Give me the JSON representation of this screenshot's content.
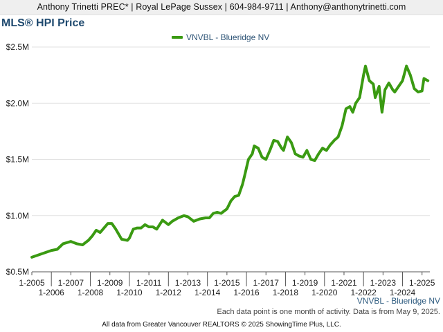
{
  "header": {
    "contact": "Anthony Trinetti PREC* | Royal LePage Sussex | 604-984-9711 | Anthony@anthonytrinetti.com"
  },
  "colors": {
    "series": "#3a9a12",
    "title": "#1f4a6f",
    "grid": "#e2e2e2"
  },
  "chart_data": {
    "type": "line",
    "title": "MLS® HPI Price",
    "legend_position": "top-center",
    "grid": true,
    "ylim": [
      0.5,
      2.5
    ],
    "y_unit": "million CAD",
    "y_tick_values": [
      0.5,
      1.0,
      1.5,
      2.0,
      2.5
    ],
    "y_tick_labels": [
      "$0.5M",
      "$1.0M",
      "$1.5M",
      "$2.0M",
      "$2.5M"
    ],
    "x_tick_values": [
      2005,
      2006,
      2007,
      2008,
      2009,
      2010,
      2011,
      2012,
      2013,
      2014,
      2015,
      2016,
      2017,
      2018,
      2019,
      2020,
      2021,
      2022,
      2023,
      2024,
      2025
    ],
    "x_tick_labels": [
      "1-2005",
      "1-2006",
      "1-2007",
      "1-2008",
      "1-2009",
      "1-2010",
      "1-2011",
      "1-2012",
      "1-2013",
      "1-2014",
      "1-2015",
      "1-2016",
      "1-2017",
      "1-2018",
      "1-2019",
      "1-2020",
      "1-2021",
      "1-2022",
      "1-2023",
      "1-2024",
      "1-2025"
    ],
    "xlim": [
      2005,
      2025.4
    ],
    "series": [
      {
        "name": "VNVBL - Blueridge NV",
        "color": "#3a9a12",
        "x": [
          2005.0,
          2005.5,
          2006.0,
          2006.3,
          2006.6,
          2007.0,
          2007.3,
          2007.6,
          2007.9,
          2008.1,
          2008.3,
          2008.5,
          2008.7,
          2008.9,
          2009.1,
          2009.3,
          2009.6,
          2009.9,
          2010.0,
          2010.2,
          2010.4,
          2010.6,
          2010.8,
          2011.0,
          2011.2,
          2011.4,
          2011.7,
          2012.0,
          2012.2,
          2012.5,
          2012.8,
          2013.0,
          2013.3,
          2013.6,
          2013.9,
          2014.1,
          2014.3,
          2014.5,
          2014.7,
          2015.0,
          2015.2,
          2015.4,
          2015.6,
          2015.8,
          2015.9,
          2016.1,
          2016.3,
          2016.4,
          2016.6,
          2016.8,
          2017.0,
          2017.2,
          2017.4,
          2017.6,
          2017.8,
          2017.9,
          2018.1,
          2018.3,
          2018.5,
          2018.7,
          2018.9,
          2019.1,
          2019.3,
          2019.5,
          2019.7,
          2019.9,
          2020.1,
          2020.3,
          2020.5,
          2020.7,
          2020.9,
          2021.1,
          2021.3,
          2021.45,
          2021.6,
          2021.8,
          2022.0,
          2022.1,
          2022.3,
          2022.5,
          2022.6,
          2022.8,
          2022.95,
          2023.1,
          2023.3,
          2023.5,
          2023.6,
          2023.8,
          2024.0,
          2024.2,
          2024.4,
          2024.6,
          2024.8,
          2025.0,
          2025.1,
          2025.3
        ],
        "y": [
          0.63,
          0.66,
          0.69,
          0.7,
          0.75,
          0.77,
          0.75,
          0.74,
          0.78,
          0.82,
          0.87,
          0.85,
          0.89,
          0.93,
          0.93,
          0.88,
          0.79,
          0.78,
          0.8,
          0.88,
          0.89,
          0.89,
          0.92,
          0.9,
          0.9,
          0.88,
          0.96,
          0.92,
          0.95,
          0.98,
          1.0,
          0.99,
          0.95,
          0.97,
          0.98,
          0.98,
          1.02,
          1.03,
          1.02,
          1.06,
          1.13,
          1.17,
          1.18,
          1.28,
          1.35,
          1.5,
          1.55,
          1.62,
          1.6,
          1.52,
          1.5,
          1.58,
          1.67,
          1.66,
          1.6,
          1.58,
          1.7,
          1.65,
          1.55,
          1.53,
          1.52,
          1.58,
          1.5,
          1.49,
          1.55,
          1.6,
          1.58,
          1.63,
          1.67,
          1.7,
          1.8,
          1.95,
          1.97,
          1.92,
          2.0,
          2.05,
          2.25,
          2.33,
          2.2,
          2.17,
          2.05,
          2.15,
          1.92,
          2.12,
          2.18,
          2.12,
          2.1,
          2.15,
          2.2,
          2.33,
          2.25,
          2.13,
          2.1,
          2.11,
          2.22,
          2.2
        ]
      }
    ]
  },
  "footnotes": {
    "series_label": "VNVBL - Blueridge NV",
    "data_note": "Each data point is one month of activity. Data is from May 9, 2025.",
    "source": "All data from Greater Vancouver REALTORS © 2025 ShowingTime Plus, LLC."
  }
}
